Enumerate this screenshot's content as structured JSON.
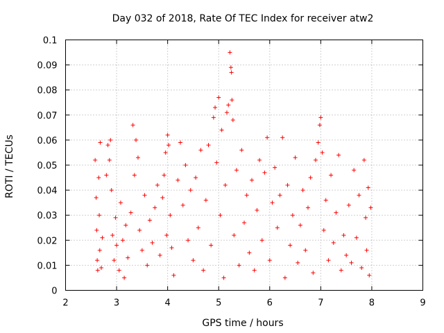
{
  "chart_data": {
    "type": "scatter",
    "title": "Day 032 of 2018, Rate Of TEC Index for receiver atw2",
    "xlabel": "GPS time / hours",
    "ylabel": "ROTI / TECUs",
    "xlim": [
      2,
      9
    ],
    "ylim": [
      0,
      0.1
    ],
    "xticks": [
      "2",
      "3",
      "4",
      "5",
      "6",
      "7",
      "8",
      "9"
    ],
    "yticks": [
      "0",
      "0.01",
      "0.02",
      "0.03",
      "0.04",
      "0.05",
      "0.06",
      "0.07",
      "0.08",
      "0.09",
      "0.1"
    ],
    "grid": true,
    "legend": "none",
    "marker": "+",
    "color": "#ff0000",
    "series": [
      {
        "values": [
          [
            2.58,
            0.052
          ],
          [
            2.6,
            0.037
          ],
          [
            2.61,
            0.024
          ],
          [
            2.62,
            0.012
          ],
          [
            2.63,
            0.008
          ],
          [
            2.65,
            0.045
          ],
          [
            2.66,
            0.03
          ],
          [
            2.67,
            0.016
          ],
          [
            2.68,
            0.059
          ],
          [
            2.7,
            0.009
          ],
          [
            2.72,
            0.021
          ],
          [
            2.8,
            0.046
          ],
          [
            2.83,
            0.058
          ],
          [
            2.86,
            0.052
          ],
          [
            2.88,
            0.06
          ],
          [
            2.9,
            0.04
          ],
          [
            2.92,
            0.022
          ],
          [
            2.95,
            0.012
          ],
          [
            2.98,
            0.029
          ],
          [
            3.0,
            0.018
          ],
          [
            3.05,
            0.008
          ],
          [
            3.08,
            0.035
          ],
          [
            3.12,
            0.02
          ],
          [
            3.15,
            0.005
          ],
          [
            3.18,
            0.026
          ],
          [
            3.22,
            0.013
          ],
          [
            3.28,
            0.031
          ],
          [
            3.32,
            0.066
          ],
          [
            3.35,
            0.046
          ],
          [
            3.38,
            0.06
          ],
          [
            3.42,
            0.053
          ],
          [
            3.45,
            0.024
          ],
          [
            3.5,
            0.016
          ],
          [
            3.55,
            0.038
          ],
          [
            3.6,
            0.01
          ],
          [
            3.65,
            0.028
          ],
          [
            3.7,
            0.019
          ],
          [
            3.75,
            0.033
          ],
          [
            3.8,
            0.042
          ],
          [
            3.85,
            0.014
          ],
          [
            3.9,
            0.037
          ],
          [
            3.93,
            0.046
          ],
          [
            3.96,
            0.055
          ],
          [
            3.98,
            0.022
          ],
          [
            4.0,
            0.062
          ],
          [
            4.02,
            0.058
          ],
          [
            4.05,
            0.03
          ],
          [
            4.08,
            0.017
          ],
          [
            4.12,
            0.006
          ],
          [
            4.2,
            0.044
          ],
          [
            4.25,
            0.059
          ],
          [
            4.3,
            0.034
          ],
          [
            4.35,
            0.05
          ],
          [
            4.4,
            0.02
          ],
          [
            4.45,
            0.04
          ],
          [
            4.5,
            0.012
          ],
          [
            4.55,
            0.045
          ],
          [
            4.6,
            0.025
          ],
          [
            4.65,
            0.056
          ],
          [
            4.7,
            0.008
          ],
          [
            4.75,
            0.036
          ],
          [
            4.8,
            0.058
          ],
          [
            4.85,
            0.018
          ],
          [
            4.9,
            0.069
          ],
          [
            4.93,
            0.073
          ],
          [
            4.96,
            0.051
          ],
          [
            5.0,
            0.077
          ],
          [
            5.03,
            0.03
          ],
          [
            5.06,
            0.064
          ],
          [
            5.1,
            0.005
          ],
          [
            5.13,
            0.042
          ],
          [
            5.16,
            0.071
          ],
          [
            5.19,
            0.074
          ],
          [
            5.22,
            0.095
          ],
          [
            5.24,
            0.089
          ],
          [
            5.25,
            0.087
          ],
          [
            5.26,
            0.076
          ],
          [
            5.28,
            0.068
          ],
          [
            5.3,
            0.022
          ],
          [
            5.35,
            0.048
          ],
          [
            5.4,
            0.01
          ],
          [
            5.45,
            0.056
          ],
          [
            5.5,
            0.027
          ],
          [
            5.55,
            0.038
          ],
          [
            5.6,
            0.015
          ],
          [
            5.65,
            0.044
          ],
          [
            5.7,
            0.008
          ],
          [
            5.75,
            0.032
          ],
          [
            5.8,
            0.052
          ],
          [
            5.85,
            0.02
          ],
          [
            5.9,
            0.047
          ],
          [
            5.95,
            0.061
          ],
          [
            6.0,
            0.012
          ],
          [
            6.05,
            0.035
          ],
          [
            6.1,
            0.049
          ],
          [
            6.15,
            0.025
          ],
          [
            6.2,
            0.038
          ],
          [
            6.25,
            0.061
          ],
          [
            6.3,
            0.005
          ],
          [
            6.35,
            0.042
          ],
          [
            6.4,
            0.018
          ],
          [
            6.45,
            0.03
          ],
          [
            6.5,
            0.053
          ],
          [
            6.55,
            0.011
          ],
          [
            6.6,
            0.026
          ],
          [
            6.65,
            0.04
          ],
          [
            6.7,
            0.016
          ],
          [
            6.75,
            0.033
          ],
          [
            6.8,
            0.045
          ],
          [
            6.85,
            0.007
          ],
          [
            6.9,
            0.052
          ],
          [
            6.95,
            0.059
          ],
          [
            6.98,
            0.066
          ],
          [
            7.0,
            0.069
          ],
          [
            7.03,
            0.055
          ],
          [
            7.06,
            0.024
          ],
          [
            7.1,
            0.036
          ],
          [
            7.15,
            0.012
          ],
          [
            7.2,
            0.046
          ],
          [
            7.25,
            0.019
          ],
          [
            7.3,
            0.031
          ],
          [
            7.35,
            0.054
          ],
          [
            7.4,
            0.008
          ],
          [
            7.45,
            0.022
          ],
          [
            7.5,
            0.014
          ],
          [
            7.55,
            0.034
          ],
          [
            7.6,
            0.011
          ],
          [
            7.65,
            0.048
          ],
          [
            7.7,
            0.021
          ],
          [
            7.75,
            0.038
          ],
          [
            7.8,
            0.009
          ],
          [
            7.85,
            0.052
          ],
          [
            7.88,
            0.029
          ],
          [
            7.9,
            0.016
          ],
          [
            7.93,
            0.041
          ],
          [
            7.95,
            0.006
          ],
          [
            7.98,
            0.033
          ]
        ]
      }
    ]
  }
}
